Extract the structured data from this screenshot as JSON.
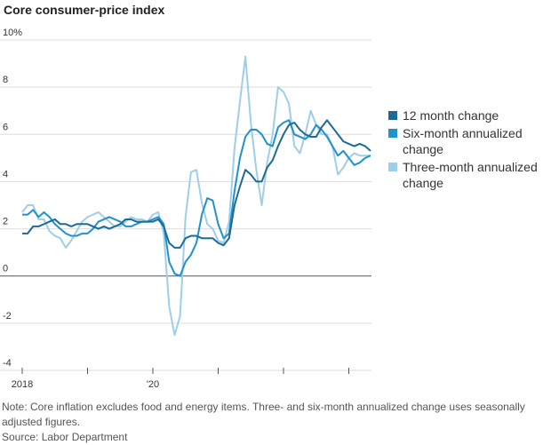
{
  "chart_data": {
    "type": "line",
    "title": "Core consumer-price index",
    "categories": [
      "2018",
      null,
      null,
      null,
      null,
      null,
      null,
      null,
      null,
      null,
      null,
      null,
      null,
      null,
      null,
      null,
      null,
      null,
      null,
      null,
      null,
      null,
      null,
      null,
      "'20",
      null,
      null,
      null,
      null,
      null,
      null,
      null,
      null,
      null,
      null,
      null,
      null,
      null,
      null,
      null,
      null,
      null,
      null,
      null,
      null,
      null,
      null,
      null,
      null,
      null,
      null,
      null,
      null,
      null,
      null,
      null,
      null,
      null,
      null,
      null,
      null,
      null,
      null,
      null,
      null
    ],
    "series": [
      {
        "name": "12 month change",
        "color": "#1b6a97",
        "values": [
          1.8,
          1.8,
          2.1,
          2.1,
          2.2,
          2.3,
          2.4,
          2.2,
          2.2,
          2.1,
          2.2,
          2.2,
          2.2,
          2.1,
          2.0,
          2.1,
          2.0,
          2.1,
          2.2,
          2.4,
          2.4,
          2.3,
          2.3,
          2.3,
          2.3,
          2.4,
          2.1,
          1.4,
          1.2,
          1.2,
          1.6,
          1.7,
          1.7,
          1.6,
          1.6,
          1.6,
          1.4,
          1.3,
          1.6,
          3.0,
          3.8,
          4.5,
          4.3,
          4.0,
          4.0,
          4.6,
          4.9,
          5.5,
          6.0,
          6.4,
          6.5,
          6.2,
          6.0,
          5.9,
          5.9,
          6.3,
          6.6,
          6.3,
          6.0,
          5.7,
          5.6,
          5.5,
          5.6,
          5.5,
          5.3
        ]
      },
      {
        "name": "Six-month annualized change",
        "color": "#2191cc",
        "values": [
          2.6,
          2.6,
          2.8,
          2.5,
          2.7,
          2.5,
          2.2,
          2.0,
          1.8,
          1.7,
          1.7,
          1.8,
          1.8,
          2.0,
          2.3,
          2.4,
          2.5,
          2.4,
          2.3,
          2.1,
          2.1,
          2.2,
          2.3,
          2.3,
          2.4,
          2.5,
          2.2,
          0.6,
          0.1,
          0.0,
          0.6,
          0.9,
          1.4,
          2.6,
          3.3,
          3.2,
          2.2,
          1.6,
          1.8,
          3.6,
          5.0,
          5.9,
          6.2,
          6.2,
          6.0,
          5.6,
          5.5,
          6.3,
          6.5,
          6.6,
          6.0,
          5.9,
          5.8,
          6.0,
          6.4,
          6.2,
          5.9,
          5.5,
          5.1,
          5.3,
          5.0,
          4.7,
          4.8,
          5.0,
          5.1
        ]
      },
      {
        "name": "Three-month annualized change",
        "color": "#9dcfe9",
        "values": [
          2.7,
          3.0,
          3.0,
          2.4,
          2.4,
          1.9,
          1.7,
          1.6,
          1.2,
          1.5,
          1.9,
          2.3,
          2.5,
          2.6,
          2.7,
          2.5,
          2.3,
          2.1,
          2.1,
          2.3,
          2.5,
          2.4,
          2.4,
          2.3,
          2.6,
          2.7,
          1.8,
          -1.3,
          -2.5,
          -1.7,
          2.5,
          4.4,
          4.5,
          3.1,
          2.2,
          2.0,
          1.5,
          1.4,
          2.3,
          5.4,
          7.4,
          9.3,
          6.5,
          4.5,
          3.0,
          4.8,
          6.0,
          8.0,
          7.8,
          7.3,
          5.5,
          5.2,
          6.0,
          7.0,
          6.4,
          6.0,
          6.0,
          5.5,
          4.3,
          4.6,
          5.0,
          5.2,
          5.1,
          5.1,
          5.1
        ]
      }
    ],
    "ylim": [
      -4,
      10
    ],
    "yticks": [
      {
        "value": 10,
        "label": "10%"
      },
      8,
      6,
      4,
      2,
      0,
      -2,
      -4
    ],
    "grid": true,
    "note": "Note: Core inflation excludes food and energy items. Three- and six-month annualized change uses seasonally adjusted figures.",
    "source": "Source: Labor Department"
  }
}
